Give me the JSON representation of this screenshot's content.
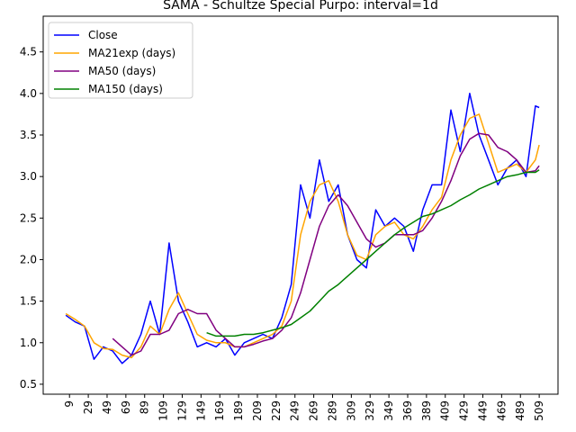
{
  "chart_data": {
    "type": "line",
    "title": "SAMA - Schultze Special Purpo: interval=1d",
    "x": [
      5,
      15,
      25,
      35,
      45,
      55,
      65,
      75,
      85,
      95,
      105,
      115,
      125,
      135,
      145,
      155,
      165,
      175,
      185,
      195,
      205,
      215,
      225,
      235,
      245,
      255,
      265,
      275,
      285,
      295,
      305,
      315,
      325,
      335,
      345,
      355,
      365,
      375,
      385,
      395,
      405,
      415,
      425,
      435,
      445,
      455,
      465,
      475,
      485,
      495,
      505,
      509
    ],
    "series": [
      {
        "name": "Close",
        "color": "#0000ff",
        "values": [
          1.33,
          1.25,
          1.2,
          0.8,
          0.95,
          0.9,
          0.75,
          0.85,
          1.1,
          1.5,
          1.1,
          2.2,
          1.5,
          1.25,
          0.95,
          1.0,
          0.95,
          1.05,
          0.85,
          1.0,
          1.05,
          1.1,
          1.05,
          1.3,
          1.7,
          2.9,
          2.5,
          3.2,
          2.7,
          2.9,
          2.3,
          2.0,
          1.9,
          2.6,
          2.4,
          2.5,
          2.4,
          2.1,
          2.6,
          2.9,
          2.9,
          3.8,
          3.3,
          4.0,
          3.5,
          3.2,
          2.9,
          3.1,
          3.2,
          3.0,
          3.85,
          3.83
        ]
      },
      {
        "name": "MA21exp (days)",
        "color": "#ffa500",
        "values": [
          1.35,
          1.28,
          1.2,
          1.0,
          0.93,
          0.92,
          0.85,
          0.82,
          0.95,
          1.2,
          1.1,
          1.4,
          1.6,
          1.35,
          1.1,
          1.03,
          1.0,
          1.0,
          0.95,
          0.95,
          1.0,
          1.05,
          1.1,
          1.2,
          1.5,
          2.3,
          2.7,
          2.9,
          2.95,
          2.7,
          2.3,
          2.05,
          2.0,
          2.3,
          2.4,
          2.45,
          2.3,
          2.25,
          2.4,
          2.6,
          2.75,
          3.2,
          3.5,
          3.7,
          3.75,
          3.4,
          3.05,
          3.1,
          3.15,
          3.05,
          3.2,
          3.38
        ]
      },
      {
        "name": "MA50 (days)",
        "color": "#800080",
        "values": [
          null,
          null,
          null,
          null,
          null,
          1.05,
          0.95,
          0.85,
          0.9,
          1.1,
          1.1,
          1.15,
          1.35,
          1.4,
          1.35,
          1.35,
          1.15,
          1.05,
          0.95,
          0.95,
          0.98,
          1.02,
          1.05,
          1.15,
          1.3,
          1.6,
          2.0,
          2.4,
          2.65,
          2.78,
          2.65,
          2.45,
          2.25,
          2.15,
          2.2,
          2.3,
          2.3,
          2.3,
          2.35,
          2.5,
          2.7,
          2.95,
          3.25,
          3.45,
          3.52,
          3.5,
          3.35,
          3.3,
          3.2,
          3.05,
          3.07,
          3.13
        ]
      },
      {
        "name": "MA150 (days)",
        "color": "#008000",
        "values": [
          null,
          null,
          null,
          null,
          null,
          null,
          null,
          null,
          null,
          null,
          null,
          null,
          null,
          null,
          null,
          1.12,
          1.08,
          1.08,
          1.08,
          1.1,
          1.1,
          1.12,
          1.15,
          1.18,
          1.22,
          1.3,
          1.38,
          1.5,
          1.62,
          1.7,
          1.8,
          1.9,
          2.0,
          2.1,
          2.2,
          2.3,
          2.38,
          2.45,
          2.52,
          2.55,
          2.6,
          2.65,
          2.72,
          2.78,
          2.85,
          2.9,
          2.95,
          3.0,
          3.02,
          3.05,
          3.05,
          3.08
        ]
      }
    ],
    "xlim": [
      -19,
      529
    ],
    "ylim": [
      0.38,
      4.93
    ],
    "xticks": [
      9,
      29,
      49,
      69,
      89,
      109,
      129,
      149,
      169,
      189,
      209,
      229,
      249,
      269,
      289,
      309,
      329,
      349,
      369,
      389,
      409,
      429,
      449,
      469,
      489,
      509
    ],
    "yticks": [
      0.5,
      {
        "value": 1,
        "label": "1.0"
      },
      1.5,
      {
        "value": 2,
        "label": "2.0"
      },
      2.5,
      {
        "value": 3,
        "label": "3.0"
      },
      3.5,
      {
        "value": 4,
        "label": "4.0"
      },
      4.5
    ],
    "legend": "upper left"
  }
}
